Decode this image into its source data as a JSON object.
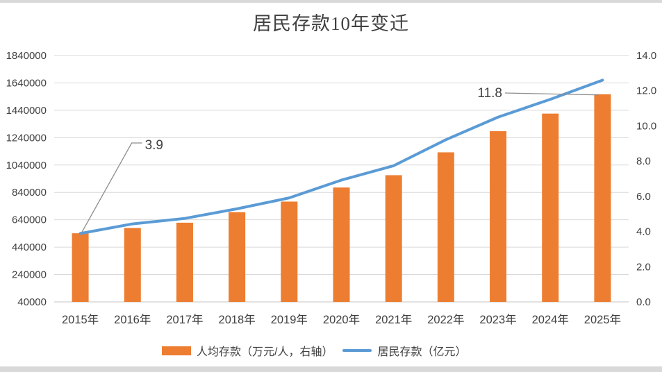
{
  "page": {
    "edge_strip_color": "#d9d9d9"
  },
  "chart_data": {
    "type": "combo-bar-line",
    "title": "居民存款10年变迁",
    "categories": [
      "2015年",
      "2016年",
      "2017年",
      "2018年",
      "2019年",
      "2020年",
      "2021年",
      "2022年",
      "2023年",
      "2024年",
      "2025年"
    ],
    "series": [
      {
        "name": "人均存款（万元/人，右轴）",
        "type": "bar",
        "axis": "right",
        "color": "#ED7D31",
        "values": [
          3.9,
          4.2,
          4.5,
          5.1,
          5.7,
          6.5,
          7.2,
          8.5,
          9.7,
          10.7,
          11.8
        ]
      },
      {
        "name": "居民存款（亿元）",
        "type": "line",
        "axis": "left",
        "color": "#5B9BD5",
        "values": [
          540000,
          610000,
          650000,
          720000,
          800000,
          930000,
          1035000,
          1225000,
          1390000,
          1520000,
          1660000
        ]
      }
    ],
    "left_axis": {
      "min": 40000,
      "max": 1840000,
      "step": 200000,
      "ticks": [
        "1840000",
        "1640000",
        "1440000",
        "1240000",
        "1040000",
        "840000",
        "640000",
        "440000",
        "240000",
        "40000"
      ]
    },
    "right_axis": {
      "min": 0,
      "max": 14,
      "step": 2,
      "ticks": [
        "14.0",
        "12.0",
        "10.0",
        "8.0",
        "6.0",
        "4.0",
        "2.0",
        "0.0"
      ]
    },
    "annotations": [
      {
        "text": "3.9",
        "category_index": 0,
        "value": 3.9,
        "axis": "right"
      },
      {
        "text": "11.8",
        "category_index": 10,
        "value": 11.8,
        "axis": "right"
      }
    ],
    "grid": true,
    "legend_position": "bottom",
    "gridline_color": "#d9d9d9",
    "axis_line_color": "#c6c6c6",
    "text_color": "#404040",
    "leader_color": "#8c8c8c"
  }
}
